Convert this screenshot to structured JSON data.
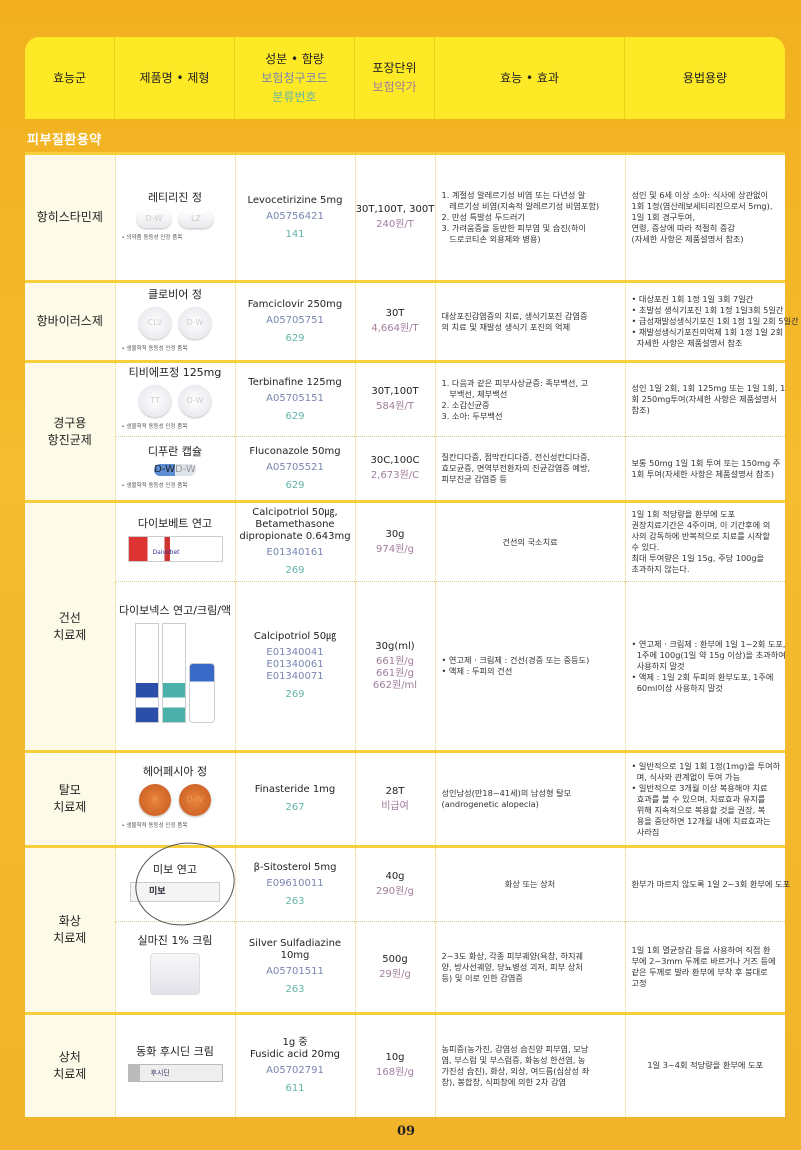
{
  "header": {
    "col1": "효능군",
    "col2": "제품명 • 제형",
    "col3": [
      "성분 • 함량",
      "보험청구코드",
      "분류번호"
    ],
    "col4": [
      "포장단위",
      "보험약가"
    ],
    "col5": "효능 • 효과",
    "col6": "용법용량"
  },
  "section": "피부질환용약",
  "groups": [
    {
      "name": [
        "항히스타민제"
      ],
      "products": [
        {
          "name": "레티리진 정",
          "image": "tablet-oval",
          "imprint": [
            "D-W",
            "LZ"
          ],
          "note": "• 의약품 동등성 인정 품목",
          "ingredient": [
            "Levocetirizine 5mg"
          ],
          "codes": [
            "A05756421"
          ],
          "class_no": "141",
          "package": [
            "30T,100T, 300T"
          ],
          "price": [
            "240원/T"
          ],
          "efficacy": [
            "1. 계절성 알레르기성 비염 또는 다년성 알",
            "   레르기성 비염(지속적 알레르기성 비염포함)",
            "2. 만성 특발성 두드러기",
            "3. 가려움증을 동반한 피부염 및 습진(하이",
            "   드로코티손 외용제와 병용)"
          ],
          "dosage": [
            "성인 및 6세 이상 소아: 식사에 상관없이",
            "1회 1정(염산레보세티리진으로서 5mg),",
            "1일 1회 경구투여,",
            "연령, 증상에 따라 적절히 증감",
            "(자세한 사항은 제품설명서 참조)"
          ]
        }
      ]
    },
    {
      "name": [
        "항바이러스제"
      ],
      "products": [
        {
          "name": "클로비어 정",
          "image": "tablet-round",
          "imprint": [
            "CLV",
            "D-W"
          ],
          "note": "• 생물학적 동등성 인정 품목",
          "ingredient": [
            "Famciclovir 250mg"
          ],
          "codes": [
            "A05705751"
          ],
          "class_no": "629",
          "package": [
            "30T"
          ],
          "price": [
            "4,664원/T"
          ],
          "efficacy": [
            "대상포진감염증의 치료, 생식기포진 감염증",
            "의 치료 및 재발성 생식기 포진의 억제"
          ],
          "dosage": [
            "• 대상포진 1회 1정 1일 3회 7일간",
            "• 초발성 생식기포진 1회 1정 1일3회 5일간",
            "• 급성재발성생식기포진 1회 1정 1일 2회 5일간",
            "• 재발성생식기포진의억제 1회 1정 1일 2회",
            "  자세한 사항은 제품설명서 참조"
          ]
        }
      ]
    },
    {
      "name": [
        "경구용",
        "항진균제"
      ],
      "products": [
        {
          "name": "티비에프정 125mg",
          "image": "tablet-round",
          "imprint": [
            "TT",
            "D-W"
          ],
          "note": "• 생물학적 동등성 인정 품목",
          "ingredient": [
            "Terbinafine 125mg"
          ],
          "codes": [
            "A05705151"
          ],
          "class_no": "629",
          "package": [
            "30T,100T"
          ],
          "price": [
            "584원/T"
          ],
          "efficacy": [
            "1. 다음과 같은 피부사상균증: 족부백선, 고",
            "   부백선, 체부백선",
            "2. 소갑신균증",
            "3. 소아: 두부백선"
          ],
          "dosage": [
            "성인 1일 2회, 1회 125mg 또는 1일 1회, 1",
            "회 250mg투여(자세한 사항은 제품설명서",
            "참조)"
          ]
        },
        {
          "name": "디푸란 캡슐",
          "image": "capsule",
          "imprint": [
            "D-W",
            "D-W"
          ],
          "note": "• 생물학적 동등성 인정 품목",
          "ingredient": [
            "Fluconazole 50mg"
          ],
          "codes": [
            "A05705521"
          ],
          "class_no": "629",
          "package": [
            "30C,100C"
          ],
          "price": [
            "2,673원/C"
          ],
          "efficacy": [
            "질칸디다증, 점막칸디다증, 전신성칸디다증,",
            "효모균증, 면역부전환자의 진균감염증 예방,",
            "피부진균 감염증 등"
          ],
          "dosage": [
            "보통 50mg 1일 1회 투여 또는 150mg 주",
            "1회 투여(자세한 사항은 제품설명서 참조)"
          ]
        }
      ]
    },
    {
      "name": [
        "건선",
        "치료제"
      ],
      "products": [
        {
          "name": "다이보베트 연고",
          "image": "tube-red",
          "imprint": [
            "Daivobet"
          ],
          "note": "",
          "ingredient": [
            "Calcipotriol 50㎍,",
            "Betamethasone",
            "dipropionate 0.643mg"
          ],
          "codes": [
            "E01340161"
          ],
          "class_no": "269",
          "package": [
            "30g"
          ],
          "price": [
            "974원/g"
          ],
          "efficacy": [
            "건선의 국소치료"
          ],
          "efficacy_center": true,
          "dosage": [
            "1일 1회 적당량을 환부에 도포",
            "권장치료기간은 4주이며, 이 기간후에 의",
            "사의 감독하에 반복적으로 치료를 시작할",
            "수 있다.",
            "최대 투여량은 1일 15g, 주당 100g을",
            "초과하지 않는다."
          ]
        },
        {
          "name": "다이보넥스 연고/크림/액",
          "image": "tubes-blue",
          "imprint": [],
          "note": "",
          "ingredient": [
            "Calcipotriol 50㎍"
          ],
          "codes": [
            "E01340041",
            "E01340061",
            "E01340071"
          ],
          "class_no": "269",
          "package": [
            "30g(ml)"
          ],
          "price": [
            "661원/g",
            "661원/g",
            "662원/ml"
          ],
          "efficacy": [
            "• 연고제 · 크림제 : 건선(경증 또는 중등도)",
            "• 액제 : 두피의 건선"
          ],
          "dosage": [
            "• 연고제 · 크림제 : 환부에 1일 1~2회 도포,",
            "  1주에 100g(1일 약 15g 이상)을 초과하여",
            "  사용하지 말것",
            "• 액제 : 1일 2회 두피의 환부도포, 1주에",
            "  60ml이상 사용하지 말것"
          ]
        }
      ]
    },
    {
      "name": [
        "탈모",
        "치료제"
      ],
      "products": [
        {
          "name": "헤어페시아 정",
          "image": "tablet-orange",
          "imprint": [
            "H",
            "D-W"
          ],
          "note": "• 생물학적 동등성 인정 품목",
          "ingredient": [
            "Finasteride 1mg"
          ],
          "codes": [],
          "class_no": "267",
          "package": [
            "28T"
          ],
          "price": [
            "비급여"
          ],
          "efficacy": [
            "성인남성(만18~41세)의 남성형 탈모",
            "(androgenetic alopecia)"
          ],
          "dosage": [
            "• 일반적으로 1일 1회 1정(1mg)을 투여하",
            "  며, 식사와 관계없이 투여 가능",
            "• 일반적으로 3개월 이상 복용해야 치료",
            "  효과를 볼 수 있으며, 치료효과 유지를",
            "  위해 지속적으로 복용할 것을 권장, 복",
            "  용을 중단하면 12개월 내에 치료효과는",
            "  사라짐"
          ]
        }
      ]
    },
    {
      "name": [
        "화상",
        "치료제"
      ],
      "products": [
        {
          "name": "미보 연고",
          "image": "tube-white",
          "imprint": [
            "미보"
          ],
          "note": "",
          "ingredient": [
            "β-Sitosterol 5mg"
          ],
          "codes": [
            "E09610011"
          ],
          "class_no": "263",
          "package": [
            "40g"
          ],
          "price": [
            "290원/g"
          ],
          "efficacy": [
            "화상 또는 상처"
          ],
          "efficacy_center": true,
          "dosage": [
            "환부가 마르지 않도록 1일 2~3회 환부에 도포"
          ]
        },
        {
          "name": "실마진 1% 크림",
          "image": "jar",
          "imprint": [],
          "note": "",
          "ingredient": [
            "Silver Sulfadiazine",
            "10mg"
          ],
          "codes": [
            "A05701511"
          ],
          "class_no": "263",
          "package": [
            "500g"
          ],
          "price": [
            "29원/g"
          ],
          "efficacy": [
            "2~3도 화상, 각종 피부궤양(욕창, 하지궤",
            "양, 방사선궤양, 당뇨병성 괴저, 피부 상처",
            "등) 및 이로 인한 감염증"
          ],
          "dosage": [
            "1일 1회 멸균장갑 등을 사용하여 직접 환",
            "부에 2~3mm 두께로 바르거나 거즈 등에",
            "같은 두께로 발라 환부에 부착 후 붕대로",
            "고정"
          ]
        }
      ]
    },
    {
      "name": [
        "상처",
        "치료제"
      ],
      "products": [
        {
          "name": "동화 후시딘 크림",
          "image": "tube-silver",
          "imprint": [
            "후시딘"
          ],
          "note": "",
          "ingredient": [
            "1g 중",
            "Fusidic acid 20mg"
          ],
          "codes": [
            "A05702791"
          ],
          "class_no": "611",
          "package": [
            "10g"
          ],
          "price": [
            "168원/g"
          ],
          "efficacy": [
            "농피증(농가진, 감염성 습진양 피부염, 모낭",
            "염, 부스럼 및 부스럼증, 화농성 한선염, 농",
            "가진성 습진), 화상, 외상, 여드름(심상성 좌",
            "창), 봉합창, 식피창에 의한 2차 감염"
          ],
          "dosage": [
            "1일 3~4회 적당량을 환부에 도포"
          ],
          "dosage_center": true
        }
      ]
    }
  ],
  "page_number": "09",
  "colors": {
    "background": "#f2b01f",
    "header": "#fde926",
    "code": "#7a86b0",
    "class_no": "#63b3a8",
    "price": "#a07d9c"
  }
}
